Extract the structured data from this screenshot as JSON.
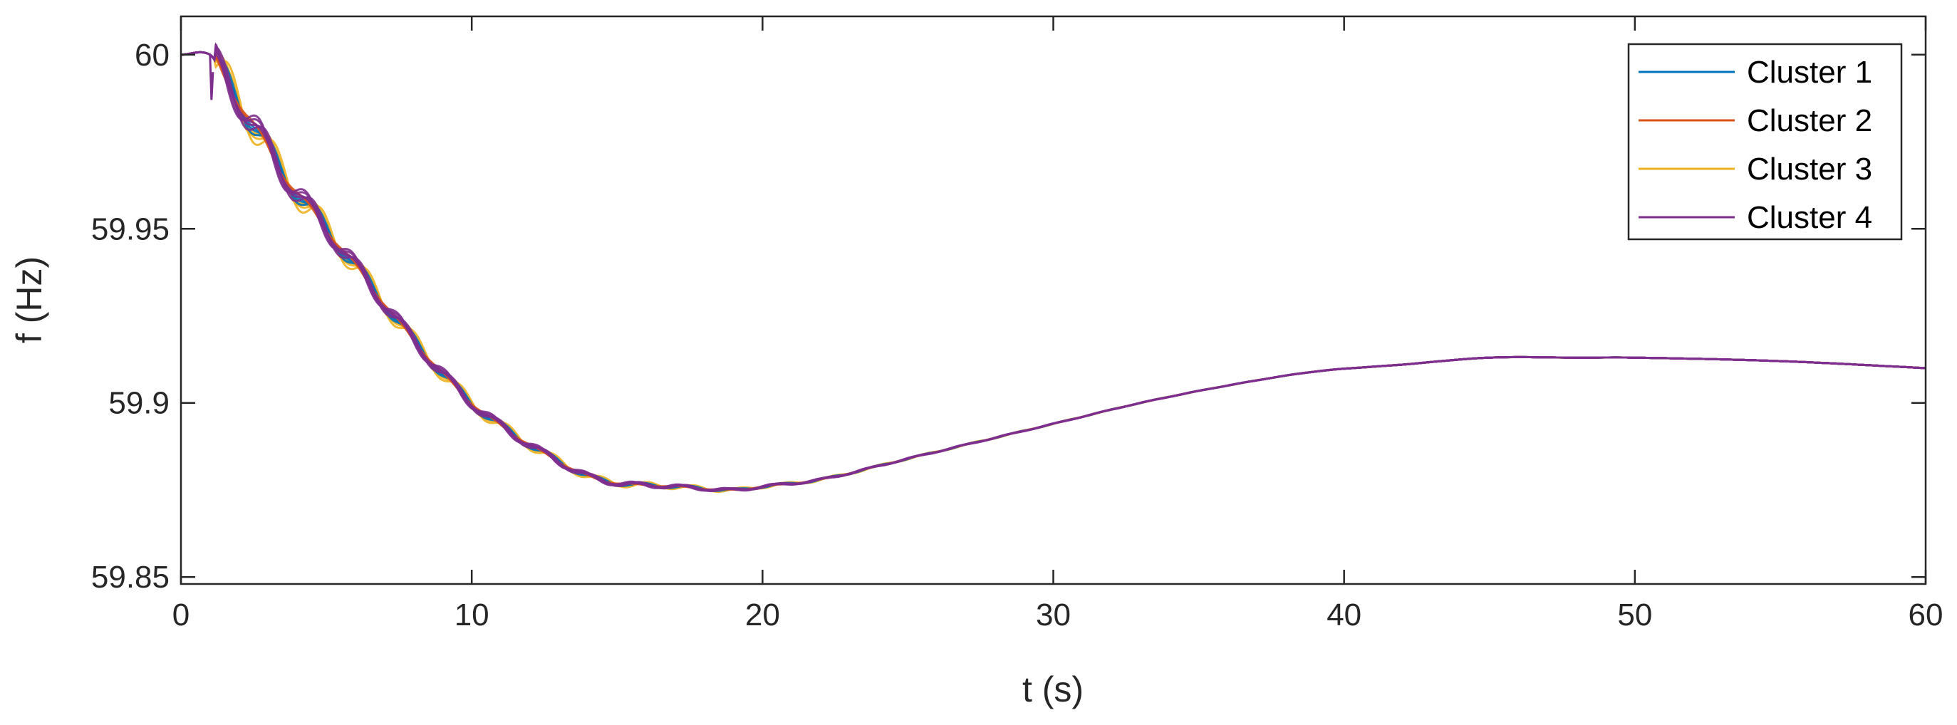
{
  "chart_data": {
    "type": "line",
    "title": "",
    "xlabel": "t (s)",
    "ylabel": "f (Hz)",
    "xlim": [
      0,
      60
    ],
    "ylim": [
      59.848,
      60.011
    ],
    "xticks": [
      0,
      10,
      20,
      30,
      40,
      50,
      60
    ],
    "yticks": [
      59.85,
      59.9,
      59.95,
      60
    ],
    "ytick_labels": [
      "59.85",
      "59.9",
      "59.95",
      "60"
    ],
    "grid": false,
    "legend_position": "top-right",
    "series": [
      {
        "name": "Cluster 1",
        "color": "#0072BD",
        "x": [
          0,
          1,
          1.5,
          2.5,
          3.5,
          5,
          6.5,
          8,
          10,
          12,
          14,
          15,
          17,
          19,
          20,
          22,
          25,
          28,
          30,
          33,
          36,
          39,
          42,
          45,
          48,
          50,
          55,
          60
        ],
        "y": [
          60.0,
          60.0,
          59.993,
          59.98,
          59.966,
          59.95,
          59.934,
          59.918,
          59.9,
          59.888,
          59.879,
          59.877,
          59.876,
          59.875,
          59.876,
          59.878,
          59.884,
          59.89,
          59.894,
          59.9,
          59.905,
          59.909,
          59.911,
          59.913,
          59.913,
          59.913,
          59.912,
          59.91
        ]
      },
      {
        "name": "Cluster 2",
        "color": "#D95319",
        "x": [
          0,
          1,
          1.5,
          2.5,
          3.5,
          5,
          6.5,
          8,
          10,
          12,
          14,
          15,
          17,
          19,
          20,
          22,
          25,
          28,
          30,
          33,
          36,
          39,
          42,
          45,
          48,
          50,
          55,
          60
        ],
        "y": [
          60.0,
          60.0,
          59.993,
          59.98,
          59.966,
          59.95,
          59.934,
          59.918,
          59.9,
          59.888,
          59.879,
          59.877,
          59.876,
          59.875,
          59.876,
          59.878,
          59.884,
          59.89,
          59.894,
          59.9,
          59.905,
          59.909,
          59.911,
          59.913,
          59.913,
          59.913,
          59.912,
          59.91
        ]
      },
      {
        "name": "Cluster 3",
        "color": "#EDB120",
        "x": [
          0,
          1,
          1.5,
          2.5,
          3.5,
          5,
          6.5,
          8,
          10,
          12,
          14,
          15,
          17,
          19,
          20,
          22,
          25,
          28,
          30,
          33,
          36,
          39,
          42,
          45,
          48,
          50,
          55,
          60
        ],
        "y": [
          60.0,
          60.0,
          59.993,
          59.98,
          59.966,
          59.95,
          59.934,
          59.918,
          59.9,
          59.888,
          59.879,
          59.877,
          59.876,
          59.875,
          59.876,
          59.878,
          59.884,
          59.89,
          59.894,
          59.9,
          59.905,
          59.909,
          59.911,
          59.913,
          59.913,
          59.913,
          59.912,
          59.91
        ]
      },
      {
        "name": "Cluster 4",
        "color": "#7E2F8E",
        "x": [
          0,
          1,
          1.5,
          2.5,
          3.5,
          5,
          6.5,
          8,
          10,
          12,
          14,
          15,
          17,
          19,
          20,
          22,
          25,
          28,
          30,
          33,
          36,
          39,
          42,
          45,
          48,
          50,
          55,
          60
        ],
        "y": [
          60.0,
          60.0,
          59.993,
          59.98,
          59.966,
          59.95,
          59.934,
          59.918,
          59.9,
          59.888,
          59.879,
          59.877,
          59.876,
          59.875,
          59.876,
          59.878,
          59.884,
          59.89,
          59.894,
          59.9,
          59.905,
          59.909,
          59.911,
          59.913,
          59.913,
          59.913,
          59.912,
          59.91
        ]
      }
    ]
  }
}
